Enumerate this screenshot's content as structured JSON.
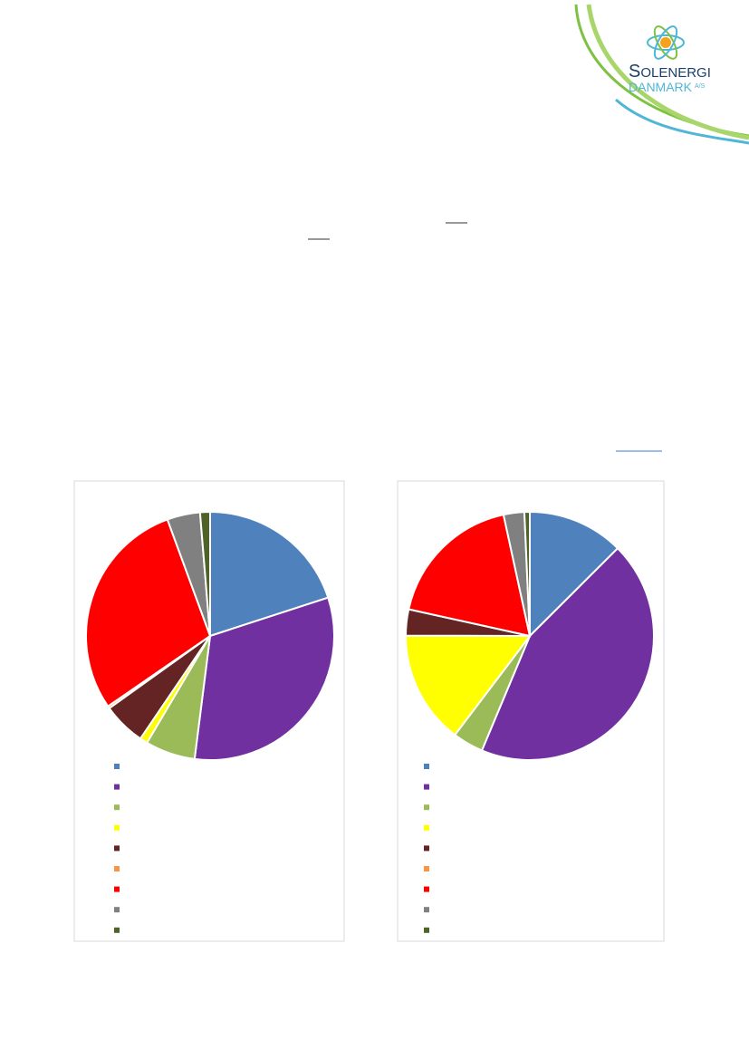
{
  "logo": {
    "first_letter": "S",
    "line1_rest": "OLENERGI",
    "line2": "DANMARK",
    "suffix": "A/S"
  },
  "chart_data": [
    {
      "type": "pie",
      "colors": [
        "#4f81bd",
        "#7030a0",
        "#9bbb59",
        "#ffff00",
        "#632423",
        "#f79646",
        "#ff0000",
        "#808080",
        "#4f6228"
      ],
      "values": [
        20,
        32,
        6.5,
        1,
        5.6,
        0.3,
        29,
        4.3,
        1.3
      ]
    },
    {
      "type": "pie",
      "colors": [
        "#4f81bd",
        "#7030a0",
        "#9bbb59",
        "#ffff00",
        "#632423",
        "#f79646",
        "#ff0000",
        "#808080",
        "#4f6228"
      ],
      "values": [
        12.5,
        43.7,
        4,
        14.7,
        3.4,
        0,
        18.1,
        2.7,
        0.7
      ]
    }
  ]
}
